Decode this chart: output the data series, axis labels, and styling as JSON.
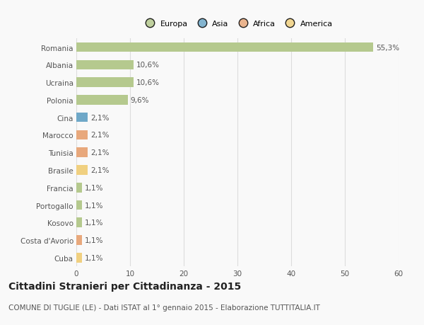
{
  "categories": [
    "Romania",
    "Albania",
    "Ucraina",
    "Polonia",
    "Cina",
    "Marocco",
    "Tunisia",
    "Brasile",
    "Francia",
    "Portogallo",
    "Kosovo",
    "Costa d'Avorio",
    "Cuba"
  ],
  "values": [
    55.3,
    10.6,
    10.6,
    9.6,
    2.1,
    2.1,
    2.1,
    2.1,
    1.1,
    1.1,
    1.1,
    1.1,
    1.1
  ],
  "labels": [
    "55,3%",
    "10,6%",
    "10,6%",
    "9,6%",
    "2,1%",
    "2,1%",
    "2,1%",
    "2,1%",
    "1,1%",
    "1,1%",
    "1,1%",
    "1,1%",
    "1,1%"
  ],
  "continent": [
    "Europa",
    "Europa",
    "Europa",
    "Europa",
    "Asia",
    "Africa",
    "Africa",
    "America",
    "Europa",
    "Europa",
    "Europa",
    "Africa",
    "America"
  ],
  "colors": {
    "Europa": "#b5c98e",
    "Asia": "#6fa8c8",
    "Africa": "#e8a87c",
    "America": "#f0d080"
  },
  "legend_order": [
    "Europa",
    "Asia",
    "Africa",
    "America"
  ],
  "legend_colors": [
    "#b5c98e",
    "#6fa8c8",
    "#e8a87c",
    "#f0d080"
  ],
  "xlim": [
    0,
    60
  ],
  "xticks": [
    0,
    10,
    20,
    30,
    40,
    50,
    60
  ],
  "title": "Cittadini Stranieri per Cittadinanza - 2015",
  "subtitle": "COMUNE DI TUGLIE (LE) - Dati ISTAT al 1° gennaio 2015 - Elaborazione TUTTITALIA.IT",
  "bg_color": "#f9f9f9",
  "grid_color": "#dddddd",
  "bar_height": 0.55,
  "label_fontsize": 7.5,
  "tick_fontsize": 7.5,
  "title_fontsize": 10,
  "subtitle_fontsize": 7.5
}
